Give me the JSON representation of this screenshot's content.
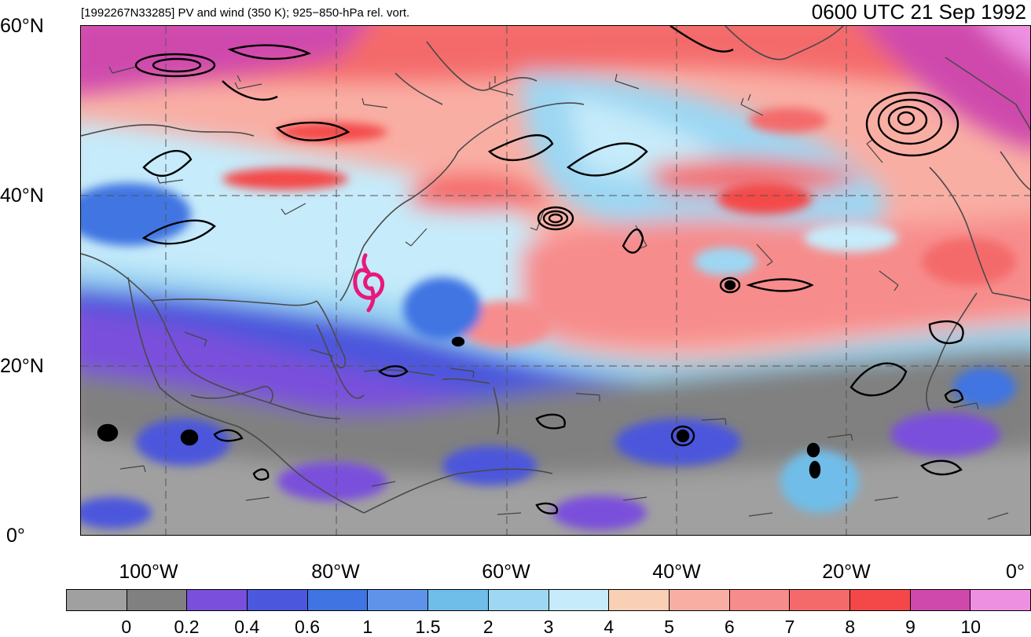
{
  "header": {
    "storm_title": "[1992267N33285] PV and wind (350 K); 925−850-hPa rel. vort.",
    "timestamp": "0600 UTC 21 Sep 1992"
  },
  "axes": {
    "latitude_labels": [
      "60°N",
      "40°N",
      "20°N",
      "0°"
    ],
    "longitude_labels": [
      "100°W",
      "80°W",
      "60°W",
      "40°W",
      "20°W",
      "0°"
    ]
  },
  "colorbar": {
    "labels": [
      "0",
      "0.2",
      "0.4",
      "0.6",
      "1",
      "1.5",
      "2",
      "3",
      "4",
      "5",
      "6",
      "7",
      "8",
      "9",
      "10"
    ],
    "colors": [
      "#a0a0a0",
      "#808080",
      "#7a4fdb",
      "#4b57dc",
      "#3f74e2",
      "#5f93ea",
      "#6fbde9",
      "#9dd7f3",
      "#c6ebfa",
      "#f9d0b6",
      "#f9aea4",
      "#f78c8c",
      "#f46a6a",
      "#f44848",
      "#cf49ad",
      "#ee90e2"
    ]
  },
  "storm_marker": {
    "icon": "tropical-cyclone-icon",
    "color": "#e8187a"
  },
  "colors": {
    "contour": "#000000",
    "coastline": "#4a4a4a",
    "gridline": "#555555"
  }
}
